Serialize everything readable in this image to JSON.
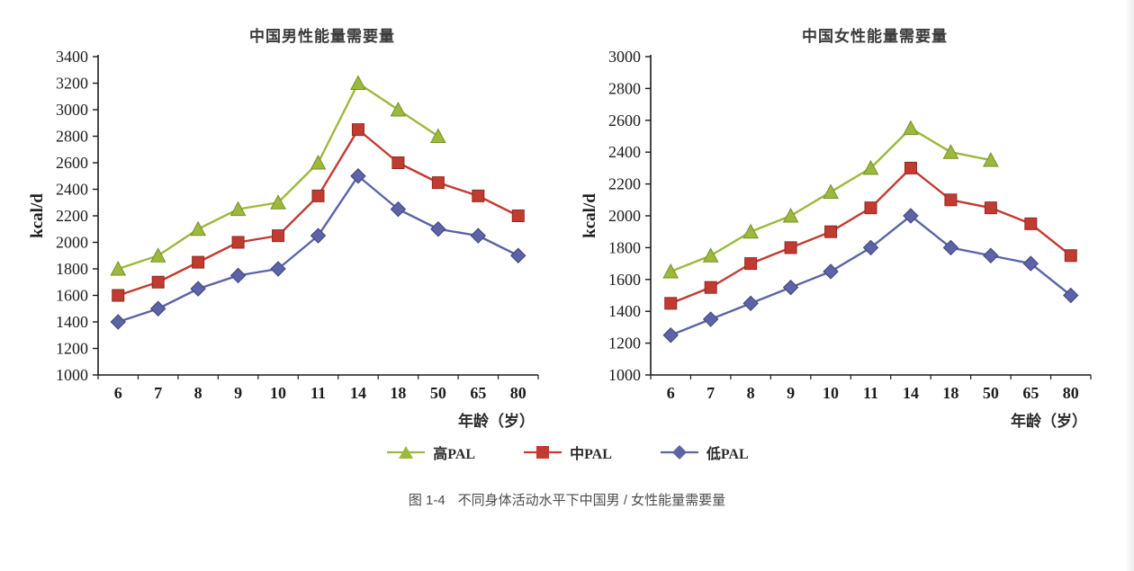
{
  "caption": {
    "prefix": "图 1-4",
    "text": "不同身体活动水平下中国男 / 女性能量需要量"
  },
  "legend": [
    {
      "label": "高PAL",
      "marker": "triangle",
      "color": "#9cb93c"
    },
    {
      "label": "中PAL",
      "marker": "square",
      "color": "#c23b31"
    },
    {
      "label": "低PAL",
      "marker": "diamond",
      "color": "#5c63a8"
    }
  ],
  "chart_data": [
    {
      "type": "line",
      "title": "中国男性能量需要量",
      "ylabel": "kcal/d",
      "xlabel": "年龄（岁）",
      "categories": [
        "6",
        "7",
        "8",
        "9",
        "10",
        "11",
        "14",
        "18",
        "50",
        "65",
        "80"
      ],
      "ylim": [
        1000,
        3400
      ],
      "ytick_step": 200,
      "grid": false,
      "legend_position": "bottom",
      "series": [
        {
          "name": "高PAL",
          "marker": "triangle",
          "color": "#9cb93c",
          "edge": "#75902a",
          "values": [
            1800,
            1900,
            2100,
            2250,
            2300,
            2600,
            3200,
            3000,
            2800,
            null,
            null
          ]
        },
        {
          "name": "中PAL",
          "marker": "square",
          "color": "#c23b31",
          "edge": "#8e2a23",
          "values": [
            1600,
            1700,
            1850,
            2000,
            2050,
            2350,
            2850,
            2600,
            2450,
            2350,
            2200
          ]
        },
        {
          "name": "低PAL",
          "marker": "diamond",
          "color": "#5c63a8",
          "edge": "#3f4579",
          "values": [
            1400,
            1500,
            1650,
            1750,
            1800,
            2050,
            2500,
            2250,
            2100,
            2050,
            1900
          ]
        }
      ]
    },
    {
      "type": "line",
      "title": "中国女性能量需要量",
      "ylabel": "kcal/d",
      "xlabel": "年龄（岁）",
      "categories": [
        "6",
        "7",
        "8",
        "9",
        "10",
        "11",
        "14",
        "18",
        "50",
        "65",
        "80"
      ],
      "ylim": [
        1000,
        3000
      ],
      "ytick_step": 200,
      "grid": false,
      "legend_position": "bottom",
      "series": [
        {
          "name": "高PAL",
          "marker": "triangle",
          "color": "#9cb93c",
          "edge": "#75902a",
          "values": [
            1650,
            1750,
            1900,
            2000,
            2150,
            2300,
            2550,
            2400,
            2350,
            null,
            null
          ]
        },
        {
          "name": "中PAL",
          "marker": "square",
          "color": "#c23b31",
          "edge": "#8e2a23",
          "values": [
            1450,
            1550,
            1700,
            1800,
            1900,
            2050,
            2300,
            2100,
            2050,
            1950,
            1750
          ]
        },
        {
          "name": "低PAL",
          "marker": "diamond",
          "color": "#5c63a8",
          "edge": "#3f4579",
          "values": [
            1250,
            1350,
            1450,
            1550,
            1650,
            1800,
            2000,
            1800,
            1750,
            1700,
            1500
          ]
        }
      ]
    }
  ]
}
